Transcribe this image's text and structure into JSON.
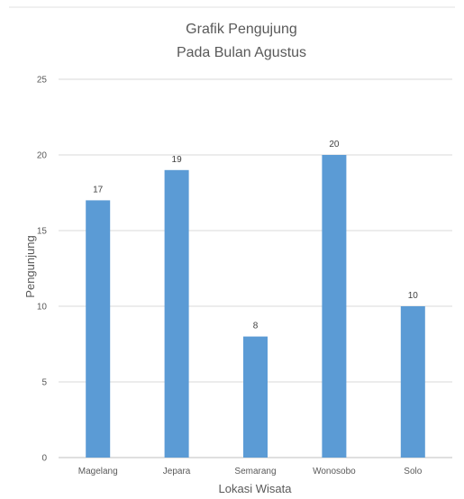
{
  "chart_data": {
    "type": "bar",
    "title": "Grafik Pengujung",
    "subtitle": "Pada Bulan Agustus",
    "xlabel": "Lokasi Wisata",
    "ylabel": "Pengunjung",
    "categories": [
      "Magelang",
      "Jepara",
      "Semarang",
      "Wonosobo",
      "Solo"
    ],
    "values": [
      17,
      19,
      8,
      20,
      10
    ],
    "ylim": [
      0,
      25
    ],
    "yticks": [
      0,
      5,
      10,
      15,
      20,
      25
    ],
    "data_labels": [
      "17",
      "19",
      "8",
      "20",
      "10"
    ],
    "grid": true,
    "legend": "none",
    "bar_color": "#5B9BD5",
    "grid_color": "#D9D9D9"
  }
}
